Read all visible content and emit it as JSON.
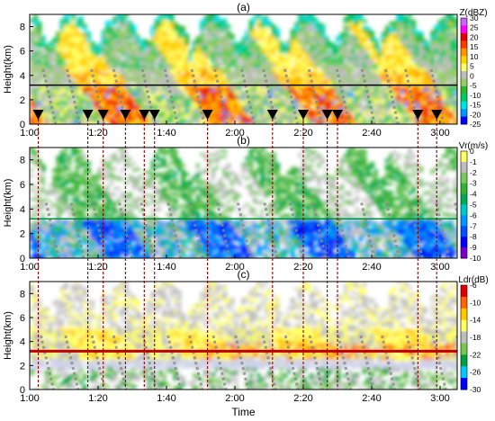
{
  "chart_data": [
    {
      "type": "heatmap",
      "panel_label": "(a)",
      "ylabel": "Height(km)",
      "xlabel": "",
      "x_ticks": [
        "1:00",
        "1:20",
        "1:40",
        "2:00",
        "2:20",
        "2:40",
        "3:00"
      ],
      "x_tick_minutes": [
        60,
        80,
        100,
        120,
        140,
        160,
        180
      ],
      "xlim_minutes": [
        60,
        185
      ],
      "y_ticks": [
        0,
        2,
        4,
        6,
        8
      ],
      "ylim": [
        0,
        9
      ],
      "melting_layer_km": 3.2,
      "colorbar": {
        "title": "Z(dBZ)",
        "ticks": [
          30,
          25,
          20,
          15,
          10,
          5,
          0,
          -5,
          -10,
          -15,
          -20,
          -25
        ],
        "range": [
          -25,
          30
        ]
      },
      "marker_times_minutes": [
        62.5,
        77,
        81.5,
        88,
        93.5,
        96.5,
        112,
        131,
        140,
        147,
        150,
        173.5,
        179
      ]
    },
    {
      "type": "heatmap",
      "panel_label": "(b)",
      "ylabel": "Height(km)",
      "xlabel": "",
      "x_ticks": [
        "1:00",
        "1:20",
        "1:40",
        "2:00",
        "2:20",
        "2:40",
        "3:00"
      ],
      "x_tick_minutes": [
        60,
        80,
        100,
        120,
        140,
        160,
        180
      ],
      "xlim_minutes": [
        60,
        185
      ],
      "y_ticks": [
        0,
        2,
        4,
        6,
        8
      ],
      "ylim": [
        0,
        9
      ],
      "melting_layer_km": 3.2,
      "colorbar": {
        "title": "Vr(m/s)",
        "ticks": [
          0,
          -1,
          -2,
          -3,
          -4,
          -5,
          -6,
          -7,
          -8,
          -9,
          -10
        ],
        "range": [
          -10,
          0
        ]
      }
    },
    {
      "type": "heatmap",
      "panel_label": "(c)",
      "ylabel": "Height(km)",
      "xlabel": "Time",
      "x_ticks": [
        "1:00",
        "1:20",
        "1:40",
        "2:00",
        "2:20",
        "2:40",
        "3:00"
      ],
      "x_tick_minutes": [
        60,
        80,
        100,
        120,
        140,
        160,
        180
      ],
      "xlim_minutes": [
        60,
        185
      ],
      "y_ticks": [
        0,
        2,
        4,
        6,
        8
      ],
      "ylim": [
        0,
        9
      ],
      "melting_layer_km": 3.2,
      "colorbar": {
        "title": "Ldr(dB)",
        "ticks": [
          -6,
          -10,
          -14,
          -18,
          -22,
          -26,
          -30
        ],
        "range": [
          -30,
          -6
        ]
      }
    }
  ],
  "dashed_line_times_minutes": [
    62.5,
    77,
    81.5,
    88,
    93.5,
    96.5,
    112,
    131,
    140,
    147,
    150,
    173.5,
    179
  ],
  "colors": {
    "z_scale": [
      "#0000ff",
      "#0096ff",
      "#00e1e1",
      "#00c864",
      "#32b432",
      "#96cd64",
      "#bebebe",
      "#ffff64",
      "#ffd200",
      "#ff9600",
      "#ff3c00",
      "#e60000",
      "#ff00ff",
      "#c864ff"
    ],
    "vr_scale": [
      "#7800c8",
      "#0000ff",
      "#0050ff",
      "#0096ff",
      "#00c8c8",
      "#00aa55",
      "#32b432",
      "#78c864",
      "#bebebe",
      "#ffff64"
    ],
    "ldr_scale": [
      "#0000ff",
      "#00c8ff",
      "#00a03c",
      "#78c850",
      "#bebebe",
      "#ffff64",
      "#ffc800",
      "#ff6400",
      "#dc0000"
    ],
    "dashed_line": "#8b0000",
    "marker": "#000000"
  }
}
